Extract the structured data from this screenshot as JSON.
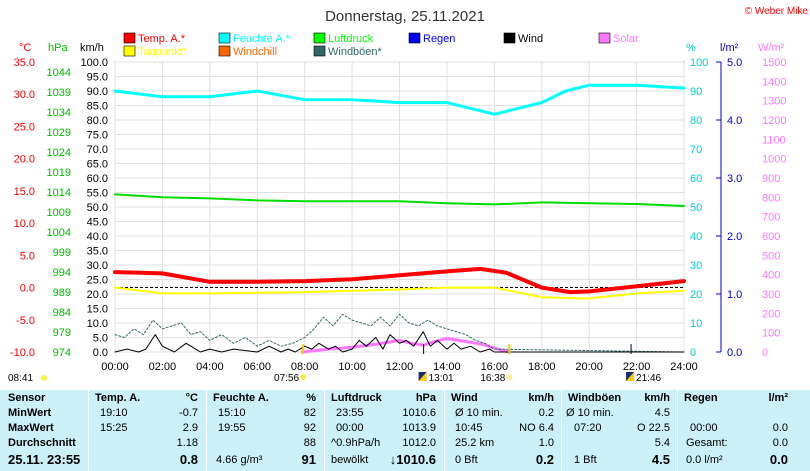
{
  "title": "Donnerstag, 25.11.2021",
  "copyright": "© Weber Mike",
  "axis_units": {
    "temp": "°C",
    "press": "hPa",
    "wind": "km/h",
    "hum": "%",
    "rain": "l/m²",
    "solar": "W/m²"
  },
  "legend": [
    {
      "label": "Temp. A.*",
      "color": "#ff0000"
    },
    {
      "label": "Feuchte A.*",
      "color": "#00ffff"
    },
    {
      "label": "Luftdruck",
      "color": "#00ff00"
    },
    {
      "label": "Regen",
      "color": "#0000ff"
    },
    {
      "label": "Wind",
      "color": "#000000"
    },
    {
      "label": "Solar",
      "color": "#ff77ff"
    },
    {
      "label": "Taupunkt*",
      "color": "#ffff00"
    },
    {
      "label": "Windchill",
      "color": "#ff6600"
    },
    {
      "label": "Windböen*",
      "color": "#336666"
    }
  ],
  "sun_times": {
    "rise": "07:56",
    "set": "16:38",
    "moonrise": "13:01",
    "moonset": "21:46",
    "dawn": "08:41"
  },
  "chart_data": {
    "type": "line",
    "title": "Donnerstag, 25.11.2021",
    "x_unit": "hour",
    "xlim": [
      0,
      24
    ],
    "x_ticks": [
      "00:00",
      "02:00",
      "04:00",
      "06:00",
      "08:00",
      "10:00",
      "12:00",
      "14:00",
      "16:00",
      "18:00",
      "20:00",
      "22:00",
      "24:00"
    ],
    "axes": {
      "temp_c": {
        "ticks": [
          "35.0",
          "30.0",
          "25.0",
          "20.0",
          "15.0",
          "10.0",
          "5.0",
          "0.0",
          "-5.0",
          "-10.0"
        ],
        "range": [
          -10,
          35
        ],
        "color": "#ff0000"
      },
      "pressure_hpa": {
        "ticks": [
          "1044",
          "1039",
          "1034",
          "1029",
          "1024",
          "1019",
          "1014",
          "1009",
          "1004",
          "999",
          "994",
          "989",
          "984",
          "979",
          "974"
        ],
        "range": [
          974,
          1046.5
        ],
        "color": "#00bb00"
      },
      "wind_kmh": {
        "ticks": [
          "100.0",
          "95.0",
          "90.0",
          "85.0",
          "80.0",
          "75.0",
          "70.0",
          "65.0",
          "60.0",
          "55.0",
          "50.0",
          "45.0",
          "40.0",
          "35.0",
          "30.0",
          "25.0",
          "20.0",
          "15.0",
          "10.0",
          "5.0",
          "0.0"
        ],
        "range": [
          0,
          100
        ],
        "color": "#000000"
      },
      "humidity_pct": {
        "ticks": [
          "100",
          "90",
          "80",
          "70",
          "60",
          "50",
          "40",
          "30",
          "20",
          "10",
          "0"
        ],
        "range": [
          0,
          100
        ],
        "color": "#00cccc"
      },
      "rain_lm2": {
        "ticks": [
          "5.0",
          "4.0",
          "3.0",
          "2.0",
          "1.0",
          "0.0"
        ],
        "range": [
          0,
          5
        ],
        "color": "#0000cc"
      },
      "solar_wm2": {
        "ticks": [
          "1500",
          "1400",
          "1300",
          "1200",
          "1100",
          "1000",
          "900",
          "800",
          "700",
          "600",
          "500",
          "400",
          "300",
          "200",
          "100",
          "0"
        ],
        "range": [
          0,
          1500
        ],
        "color": "#ff77ff"
      }
    },
    "series": [
      {
        "name": "Temp. A.*",
        "axis": "temp_c",
        "color": "#ff0000",
        "x": [
          0,
          2,
          4,
          6,
          8,
          10,
          12,
          14,
          15.4,
          16.5,
          18,
          19.2,
          20,
          22,
          24
        ],
        "y": [
          2.4,
          2.2,
          0.9,
          0.9,
          1.0,
          1.3,
          1.9,
          2.5,
          2.9,
          2.3,
          0.0,
          -0.7,
          -0.6,
          0.2,
          1.0
        ]
      },
      {
        "name": "Feuchte A.*",
        "axis": "humidity_pct",
        "color": "#00ffff",
        "x": [
          0,
          2,
          4,
          6,
          8,
          10,
          12,
          14,
          15,
          16,
          18,
          19,
          20,
          22,
          24
        ],
        "y": [
          90,
          88,
          88,
          90,
          87,
          87,
          86,
          86,
          84,
          82,
          86,
          90,
          92,
          92,
          91
        ]
      },
      {
        "name": "Luftdruck",
        "axis": "pressure_hpa",
        "color": "#00dd00",
        "x": [
          0,
          2,
          4,
          6,
          8,
          10,
          12,
          14,
          16,
          18,
          20,
          22,
          24
        ],
        "y": [
          1013.4,
          1012.7,
          1012.4,
          1011.9,
          1011.7,
          1011.7,
          1011.7,
          1011.2,
          1010.9,
          1011.4,
          1011.2,
          1011.0,
          1010.5
        ]
      },
      {
        "name": "Taupunkt*",
        "axis": "temp_c",
        "color": "#ffff00",
        "x": [
          0,
          2,
          4,
          6,
          8,
          10,
          12,
          14,
          16,
          18,
          19.9,
          22,
          24
        ],
        "y": [
          0.0,
          -0.9,
          -0.9,
          -0.8,
          -0.7,
          -0.5,
          -0.3,
          0.0,
          0.0,
          -1.5,
          -1.7,
          -0.9,
          -0.5
        ]
      },
      {
        "name": "Wind",
        "axis": "wind_kmh",
        "color": "#000000",
        "x": [
          0,
          0.5,
          1,
          1.3,
          1.7,
          2,
          2.5,
          3,
          3.4,
          3.6,
          4,
          4.5,
          5,
          6,
          6.5,
          7,
          7.3,
          7.6,
          8,
          8.3,
          8.6,
          9,
          9.3,
          9.6,
          10,
          10.3,
          10.6,
          11,
          11.3,
          11.6,
          12,
          12.3,
          12.6,
          13,
          13.3,
          13.6,
          14,
          14.3,
          14.6,
          15,
          15.4,
          15.8,
          16,
          24
        ],
        "y": [
          0,
          1,
          0,
          1,
          6,
          2,
          0,
          3,
          1,
          0,
          1,
          0,
          1,
          0,
          2,
          0,
          1,
          0,
          2,
          1,
          3,
          1,
          2,
          0,
          1,
          4,
          2,
          5,
          1,
          6,
          3,
          4,
          2,
          7,
          2,
          4,
          1,
          3,
          1,
          2,
          0,
          1,
          0,
          0
        ]
      },
      {
        "name": "Windböen*",
        "axis": "wind_kmh",
        "color": "#336666",
        "x": [
          0,
          0.4,
          0.8,
          1.2,
          1.6,
          2,
          2.4,
          2.8,
          3.2,
          3.6,
          4,
          4.5,
          5,
          5.5,
          6,
          6.5,
          7,
          7.5,
          8,
          8.4,
          8.8,
          9.2,
          9.6,
          10,
          10.4,
          10.8,
          11.2,
          11.6,
          12,
          12.4,
          12.8,
          13.2,
          13.6,
          14,
          14.4,
          14.8,
          15.2,
          15.6,
          16,
          24
        ],
        "y": [
          6,
          5,
          8,
          6,
          11,
          8,
          9,
          10,
          6,
          7,
          4,
          6,
          3,
          5,
          2,
          4,
          2,
          3,
          5,
          8,
          12,
          9,
          13,
          11,
          10,
          9,
          12,
          9,
          13,
          10,
          9,
          11,
          9,
          8,
          7,
          6,
          4,
          3,
          1,
          0
        ]
      },
      {
        "name": "Solar",
        "axis": "solar_wm2",
        "color": "#ff77ff",
        "x": [
          7.9,
          8.5,
          9,
          10,
          11,
          12,
          12.5,
          13,
          13.5,
          14,
          14.5,
          15,
          15.5,
          16,
          16.6
        ],
        "y": [
          0,
          8,
          15,
          25,
          40,
          60,
          45,
          35,
          55,
          70,
          60,
          50,
          40,
          20,
          0
        ]
      }
    ]
  },
  "stats": {
    "row_labels": [
      "Sensor",
      "MinWert",
      "MaxWert",
      "Durchschnitt",
      "25.11. 23:55"
    ],
    "temp": {
      "header": "Temp. A.",
      "unit": "°C",
      "min_time": "19:10",
      "min_val": "-0.7",
      "max_time": "15:25",
      "max_val": "2.9",
      "avg": "1.18",
      "current": "0.8"
    },
    "hum": {
      "header": "Feuchte A.",
      "unit": "%",
      "min_time": "15:10",
      "min_val": "82",
      "max_time": "19:55",
      "max_val": "92",
      "avg": "88",
      "current_abs": "4.66 g/m³",
      "current": "91"
    },
    "press": {
      "header": "Luftdruck",
      "unit": "hPa",
      "min_time": "23:55",
      "min_val": "1010.6",
      "max_time": "00:00",
      "max_val": "1013.9",
      "trend": "^0.9hPa/h",
      "avg": "1012.0",
      "weather": "bewölkt",
      "current": "↓1010.6"
    },
    "wind": {
      "header": "Wind",
      "unit": "km/h",
      "r1_label": "Ø 10 min.",
      "r1_val": "0.2",
      "r2_time": "10:45",
      "r2_val": "NO 6.4",
      "r3_label": "25.2 km",
      "r3_val": "1.0",
      "cur_label": "0 Bft",
      "current": "0.2"
    },
    "gust": {
      "header": "Windböen",
      "unit": "km/h",
      "r1_label": "Ø 10 min.",
      "r1_val": "4.5",
      "r2_time": "07:20",
      "r2_val": "O 22.5",
      "r3_val": "5.4",
      "cur_label": "1 Bft",
      "current": "4.5"
    },
    "rain": {
      "header": "Regen",
      "unit": "l/m²",
      "r2_time": "00:00",
      "r2_val": "0.0",
      "r3_label": "Gesamt:",
      "r3_val": "0.0",
      "cur_label": "0.0 l/m²",
      "current": "0.0"
    }
  }
}
